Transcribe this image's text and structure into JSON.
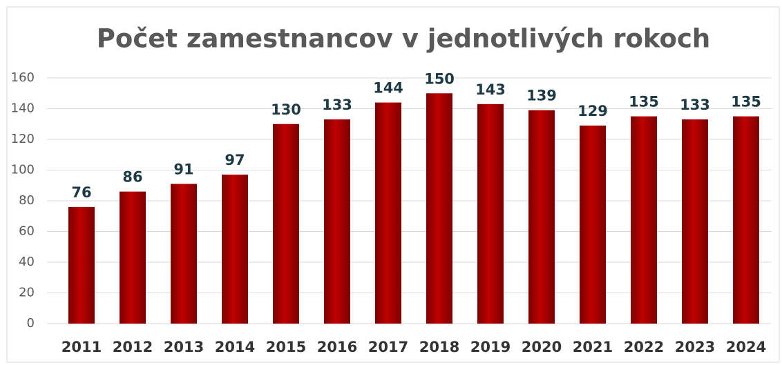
{
  "chart_data": {
    "type": "bar",
    "title": "Počet zamestnancov v jednotlivých rokoch",
    "categories": [
      "2011",
      "2012",
      "2013",
      "2014",
      "2015",
      "2016",
      "2017",
      "2018",
      "2019",
      "2020",
      "2021",
      "2022",
      "2023",
      "2024"
    ],
    "values": [
      76,
      86,
      91,
      97,
      130,
      133,
      144,
      150,
      143,
      139,
      129,
      135,
      133,
      135
    ],
    "color": "#c00000",
    "ylim": [
      0,
      160
    ],
    "yticks": [
      0,
      20,
      40,
      60,
      80,
      100,
      120,
      140,
      160
    ],
    "grid": true
  }
}
